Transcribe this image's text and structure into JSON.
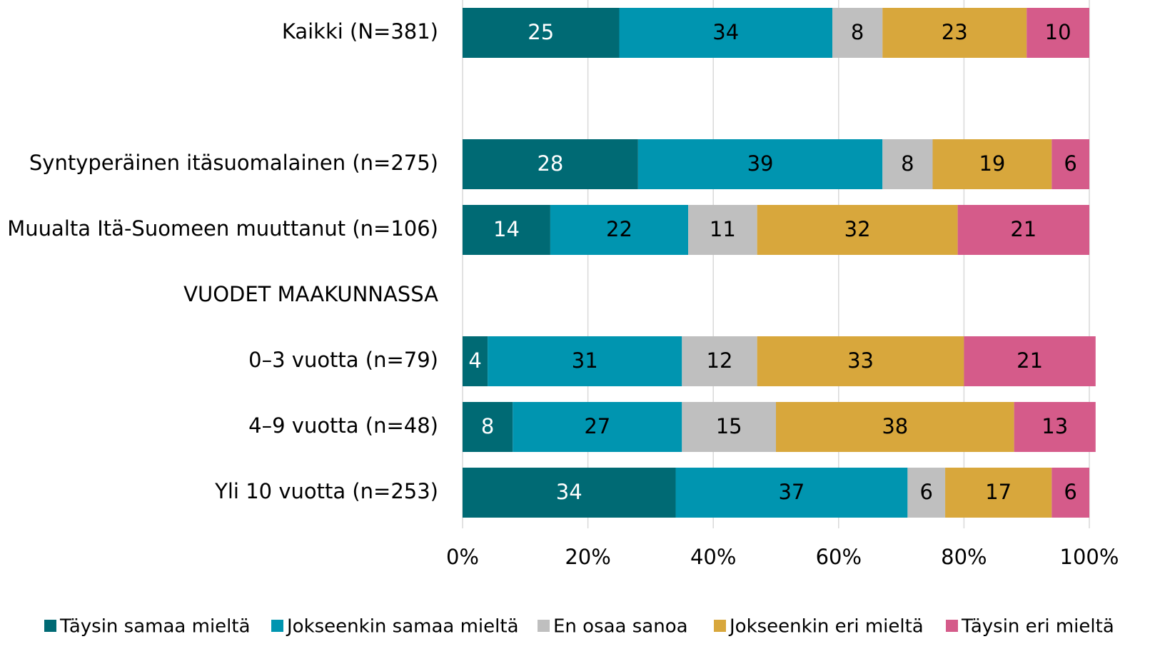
{
  "chart_data": {
    "type": "stacked_barh",
    "categories": [
      "Kaikki (N=381)",
      null,
      "Syntyperäinen itäsuomalainen (n=275)",
      "Muualta Itä-Suomeen muuttanut (n=106)",
      "VUODET MAAKUNNASSA",
      "0–3 vuotta (n=79)",
      "4–9 vuotta (n=48)",
      "Yli 10 vuotta (n=253)"
    ],
    "series": [
      {
        "name": "Täysin samaa mieltä",
        "color": "#006a74",
        "values": [
          25,
          null,
          28,
          14,
          null,
          4,
          8,
          34
        ]
      },
      {
        "name": "Jokseenkin samaa mieltä",
        "color": "#0095b0",
        "values": [
          34,
          null,
          39,
          22,
          null,
          31,
          27,
          37
        ]
      },
      {
        "name": "En osaa sanoa",
        "color": "#bfbfbf",
        "values": [
          8,
          null,
          8,
          11,
          null,
          12,
          15,
          6
        ]
      },
      {
        "name": "Jokseenkin eri mieltä",
        "color": "#d8a73c",
        "values": [
          23,
          null,
          19,
          32,
          null,
          33,
          38,
          17
        ]
      },
      {
        "name": "Täysin eri mieltä",
        "color": "#d55b8a",
        "values": [
          10,
          null,
          6,
          21,
          null,
          21,
          13,
          6
        ]
      }
    ],
    "xlim": [
      0,
      100
    ],
    "xticks": [
      {
        "value": 0,
        "label": "0%"
      },
      {
        "value": 20,
        "label": "20%"
      },
      {
        "value": 40,
        "label": "40%"
      },
      {
        "value": 60,
        "label": "60%"
      },
      {
        "value": 80,
        "label": "80%"
      },
      {
        "value": 100,
        "label": "100%"
      }
    ],
    "grid": true,
    "legend": "bottom"
  }
}
